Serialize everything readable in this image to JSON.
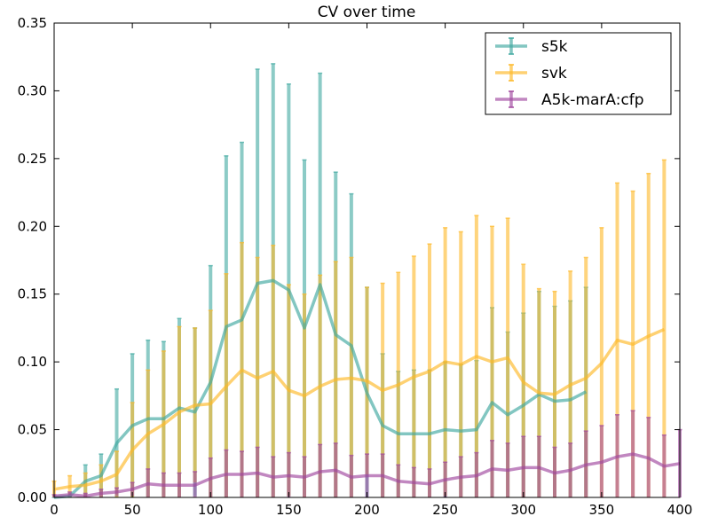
{
  "chart_data": {
    "type": "line",
    "title": "CV over time",
    "xlabel": "",
    "ylabel": "",
    "xlim": [
      0,
      400
    ],
    "ylim": [
      0,
      0.35
    ],
    "xticks": [
      0,
      50,
      100,
      150,
      200,
      250,
      300,
      350,
      400
    ],
    "xtick_labels": [
      "0",
      "50",
      "100",
      "150",
      "200",
      "250",
      "300",
      "350",
      "400"
    ],
    "yticks": [
      0,
      0.05,
      0.1,
      0.15,
      0.2,
      0.25,
      0.3,
      0.35
    ],
    "ytick_labels": [
      "0.00",
      "0.05",
      "0.10",
      "0.15",
      "0.20",
      "0.25",
      "0.30",
      "0.35"
    ],
    "grid": false,
    "legend_position": "top-right",
    "series": [
      {
        "name": "s5k",
        "color": "#3fa8a0",
        "x": [
          0,
          10,
          20,
          30,
          40,
          50,
          60,
          70,
          80,
          90,
          100,
          110,
          120,
          130,
          140,
          150,
          160,
          170,
          180,
          190,
          200,
          210,
          220,
          230,
          240,
          250,
          260,
          270,
          280,
          290,
          300,
          310,
          320,
          330,
          340
        ],
        "y": [
          0.0,
          0.001,
          0.012,
          0.016,
          0.04,
          0.053,
          0.058,
          0.058,
          0.066,
          0.063,
          0.085,
          0.126,
          0.131,
          0.158,
          0.16,
          0.153,
          0.125,
          0.157,
          0.12,
          0.112,
          0.077,
          0.053,
          0.047,
          0.047,
          0.047,
          0.05,
          0.049,
          0.05,
          0.07,
          0.061,
          0.068,
          0.076,
          0.071,
          0.072,
          0.078
        ],
        "yerr": [
          0.0,
          0.0,
          0.012,
          0.016,
          0.04,
          0.053,
          0.058,
          0.057,
          0.066,
          0.062,
          0.086,
          0.126,
          0.131,
          0.158,
          0.16,
          0.152,
          0.124,
          0.156,
          0.12,
          0.112,
          0.078,
          0.053,
          0.046,
          0.047,
          0.047,
          0.05,
          0.049,
          0.051,
          0.07,
          0.061,
          0.068,
          0.076,
          0.07,
          0.073,
          0.077
        ]
      },
      {
        "name": "svk",
        "color": "#fdb827",
        "x": [
          0,
          10,
          20,
          30,
          40,
          50,
          60,
          70,
          80,
          90,
          100,
          110,
          120,
          130,
          140,
          150,
          160,
          170,
          180,
          190,
          200,
          210,
          220,
          230,
          240,
          250,
          260,
          270,
          280,
          290,
          300,
          310,
          320,
          330,
          340,
          350,
          360,
          370,
          380,
          390
        ],
        "y": [
          0.006,
          0.008,
          0.009,
          0.012,
          0.017,
          0.035,
          0.047,
          0.054,
          0.063,
          0.068,
          0.069,
          0.082,
          0.094,
          0.088,
          0.093,
          0.079,
          0.075,
          0.082,
          0.087,
          0.088,
          0.086,
          0.079,
          0.083,
          0.089,
          0.093,
          0.1,
          0.098,
          0.104,
          0.1,
          0.103,
          0.085,
          0.077,
          0.076,
          0.083,
          0.088,
          0.099,
          0.116,
          0.113,
          0.119,
          0.124
        ],
        "yerr": [
          0.006,
          0.008,
          0.009,
          0.012,
          0.017,
          0.035,
          0.047,
          0.054,
          0.063,
          0.057,
          0.069,
          0.083,
          0.094,
          0.089,
          0.093,
          0.078,
          0.075,
          0.082,
          0.087,
          0.089,
          0.069,
          0.079,
          0.083,
          0.089,
          0.094,
          0.099,
          0.098,
          0.104,
          0.1,
          0.103,
          0.087,
          0.077,
          0.076,
          0.084,
          0.089,
          0.1,
          0.116,
          0.113,
          0.12,
          0.125
        ]
      },
      {
        "name": "A5k-marA:cfp",
        "color": "#a0479e",
        "x": [
          0,
          10,
          20,
          30,
          40,
          50,
          60,
          70,
          80,
          90,
          100,
          110,
          120,
          130,
          140,
          150,
          160,
          170,
          180,
          190,
          200,
          210,
          220,
          230,
          240,
          250,
          260,
          270,
          280,
          290,
          300,
          310,
          320,
          330,
          340,
          350,
          360,
          370,
          380,
          390,
          400
        ],
        "y": [
          0.001,
          0.002,
          0.001,
          0.003,
          0.004,
          0.006,
          0.01,
          0.009,
          0.009,
          0.009,
          0.014,
          0.017,
          0.017,
          0.018,
          0.015,
          0.016,
          0.015,
          0.019,
          0.02,
          0.015,
          0.016,
          0.016,
          0.012,
          0.011,
          0.01,
          0.013,
          0.015,
          0.016,
          0.021,
          0.02,
          0.022,
          0.022,
          0.018,
          0.02,
          0.024,
          0.026,
          0.03,
          0.032,
          0.029,
          0.023,
          0.025
        ],
        "yerr": [
          0.001,
          0.002,
          0.002,
          0.003,
          0.003,
          0.005,
          0.011,
          0.009,
          0.009,
          0.01,
          0.015,
          0.018,
          0.017,
          0.019,
          0.015,
          0.017,
          0.015,
          0.02,
          0.02,
          0.016,
          0.016,
          0.016,
          0.012,
          0.011,
          0.011,
          0.013,
          0.015,
          0.017,
          0.021,
          0.02,
          0.023,
          0.023,
          0.019,
          0.02,
          0.025,
          0.027,
          0.031,
          0.032,
          0.03,
          0.023,
          0.025
        ]
      }
    ]
  }
}
